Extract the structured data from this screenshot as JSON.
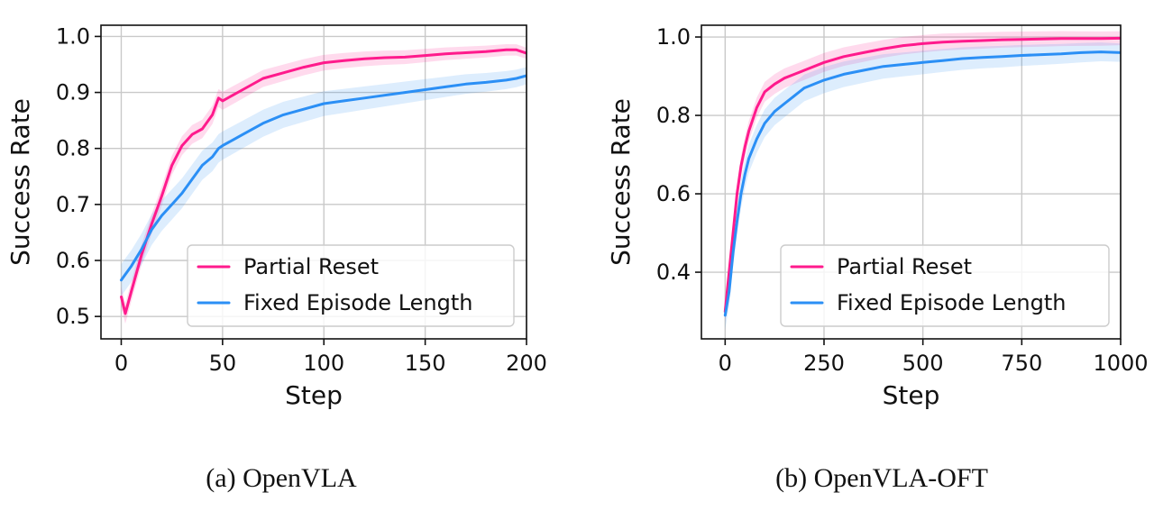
{
  "chart_data": [
    {
      "type": "line",
      "caption": "(a) OpenVLA",
      "title": "",
      "xlabel": "Step",
      "ylabel": "Success Rate",
      "xlim": [
        -10,
        200
      ],
      "ylim": [
        0.46,
        1.02
      ],
      "xticks": [
        0,
        50,
        100,
        150,
        200
      ],
      "xtick_labels": [
        "0",
        "50",
        "100",
        "150",
        "200"
      ],
      "yticks": [
        0.5,
        0.6,
        0.7,
        0.8,
        0.9,
        1.0
      ],
      "ytick_labels": [
        "0.5",
        "0.6",
        "0.7",
        "0.8",
        "0.9",
        "1.0"
      ],
      "grid": true,
      "legend_position": "lower-right",
      "x": [
        0,
        2,
        5,
        10,
        15,
        20,
        25,
        30,
        35,
        40,
        45,
        48,
        50,
        55,
        60,
        70,
        80,
        90,
        100,
        110,
        120,
        130,
        140,
        150,
        160,
        170,
        180,
        190,
        195,
        200
      ],
      "series": [
        {
          "name": "Partial Reset",
          "color": "#ff1a8c",
          "values": [
            0.535,
            0.505,
            0.545,
            0.61,
            0.665,
            0.715,
            0.77,
            0.805,
            0.825,
            0.835,
            0.86,
            0.89,
            0.885,
            0.895,
            0.905,
            0.925,
            0.935,
            0.945,
            0.953,
            0.957,
            0.96,
            0.962,
            0.963,
            0.966,
            0.969,
            0.971,
            0.973,
            0.976,
            0.976,
            0.97
          ]
        },
        {
          "name": "Fixed Episode Length",
          "color": "#2b8ff5",
          "values": [
            0.565,
            0.575,
            0.59,
            0.62,
            0.655,
            0.68,
            0.7,
            0.72,
            0.745,
            0.77,
            0.785,
            0.8,
            0.805,
            0.815,
            0.825,
            0.845,
            0.86,
            0.87,
            0.88,
            0.885,
            0.89,
            0.895,
            0.9,
            0.905,
            0.91,
            0.915,
            0.918,
            0.922,
            0.925,
            0.93
          ]
        }
      ]
    },
    {
      "type": "line",
      "caption": "(b) OpenVLA-OFT",
      "title": "",
      "xlabel": "Step",
      "ylabel": "Success Rate",
      "xlim": [
        -60,
        1000
      ],
      "ylim": [
        0.23,
        1.03
      ],
      "xticks": [
        0,
        250,
        500,
        750,
        1000
      ],
      "xtick_labels": [
        "0",
        "250",
        "500",
        "750",
        "1000"
      ],
      "yticks": [
        0.4,
        0.6,
        0.8,
        1.0
      ],
      "ytick_labels": [
        "0.4",
        "0.6",
        "0.8",
        "1.0"
      ],
      "grid": true,
      "legend_position": "lower-right",
      "x": [
        0,
        10,
        20,
        30,
        40,
        50,
        60,
        80,
        100,
        125,
        150,
        175,
        200,
        250,
        300,
        350,
        400,
        450,
        500,
        550,
        600,
        650,
        700,
        750,
        800,
        850,
        900,
        950,
        1000
      ],
      "series": [
        {
          "name": "Partial Reset",
          "color": "#ff1a8c",
          "values": [
            0.3,
            0.4,
            0.5,
            0.6,
            0.67,
            0.72,
            0.76,
            0.82,
            0.86,
            0.88,
            0.895,
            0.905,
            0.915,
            0.935,
            0.95,
            0.96,
            0.97,
            0.978,
            0.983,
            0.987,
            0.989,
            0.991,
            0.993,
            0.994,
            0.995,
            0.996,
            0.996,
            0.996,
            0.997
          ]
        },
        {
          "name": "Fixed Episode Length",
          "color": "#2b8ff5",
          "values": [
            0.29,
            0.35,
            0.45,
            0.53,
            0.6,
            0.65,
            0.69,
            0.74,
            0.78,
            0.81,
            0.83,
            0.85,
            0.87,
            0.89,
            0.905,
            0.915,
            0.925,
            0.93,
            0.935,
            0.94,
            0.945,
            0.948,
            0.95,
            0.953,
            0.955,
            0.957,
            0.96,
            0.962,
            0.96
          ]
        }
      ]
    }
  ]
}
